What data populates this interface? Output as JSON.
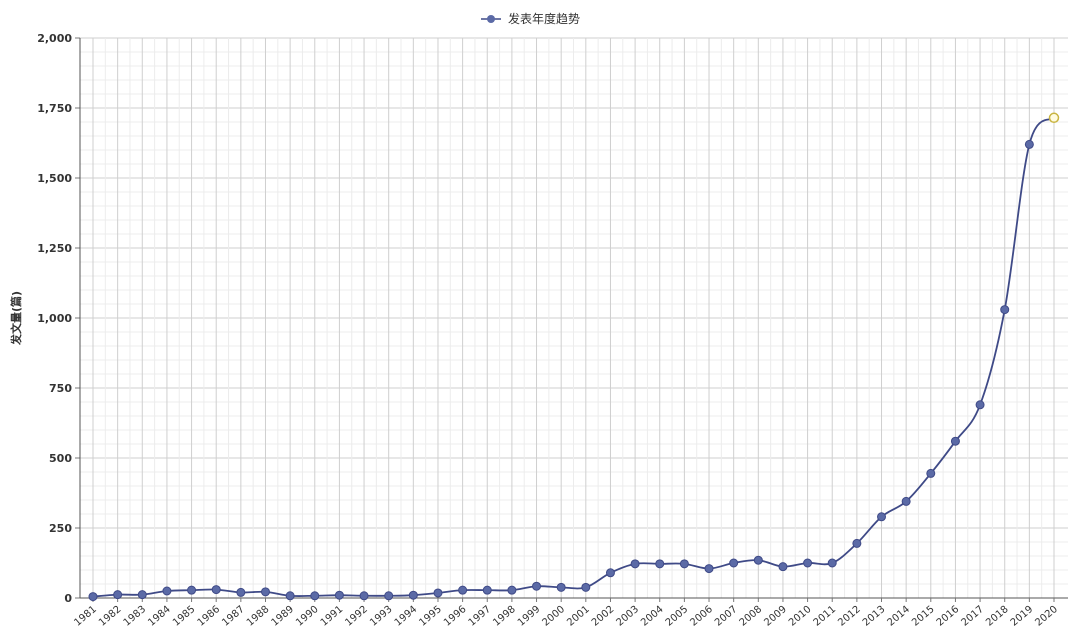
{
  "chart_data": {
    "type": "line",
    "title": "",
    "xlabel": "",
    "ylabel": "发文量(篇)",
    "legend": {
      "label": "发表年度趋势",
      "placement": "top-center"
    },
    "ylim": [
      0,
      2000
    ],
    "yticks": [
      "0",
      "250",
      "500",
      "750",
      "1,000",
      "1,250",
      "1,500",
      "1,750",
      "2,000"
    ],
    "ytick_values": [
      0,
      250,
      500,
      750,
      1000,
      1250,
      1500,
      1750,
      2000
    ],
    "grid": true,
    "colors": {
      "line": "#3f4a87",
      "marker": "#5b6aa6",
      "last_marker_fill": "#fffbe0",
      "last_marker_stroke": "#c8b440"
    },
    "categories": [
      "1981",
      "1982",
      "1983",
      "1984",
      "1985",
      "1986",
      "1987",
      "1988",
      "1989",
      "1990",
      "1991",
      "1992",
      "1993",
      "1994",
      "1995",
      "1996",
      "1997",
      "1998",
      "1999",
      "2000",
      "2001",
      "2002",
      "2003",
      "2004",
      "2005",
      "2006",
      "2007",
      "2008",
      "2009",
      "2010",
      "2011",
      "2012",
      "2013",
      "2014",
      "2015",
      "2016",
      "2017",
      "2018",
      "2019",
      "2020"
    ],
    "series": [
      {
        "name": "发表年度趋势",
        "values": [
          5,
          12,
          12,
          25,
          28,
          30,
          20,
          22,
          8,
          8,
          10,
          8,
          8,
          10,
          18,
          28,
          28,
          28,
          42,
          38,
          38,
          90,
          122,
          122,
          122,
          105,
          125,
          135,
          112,
          125,
          125,
          195,
          290,
          345,
          445,
          560,
          690,
          1030,
          1620,
          1715
        ]
      }
    ]
  }
}
